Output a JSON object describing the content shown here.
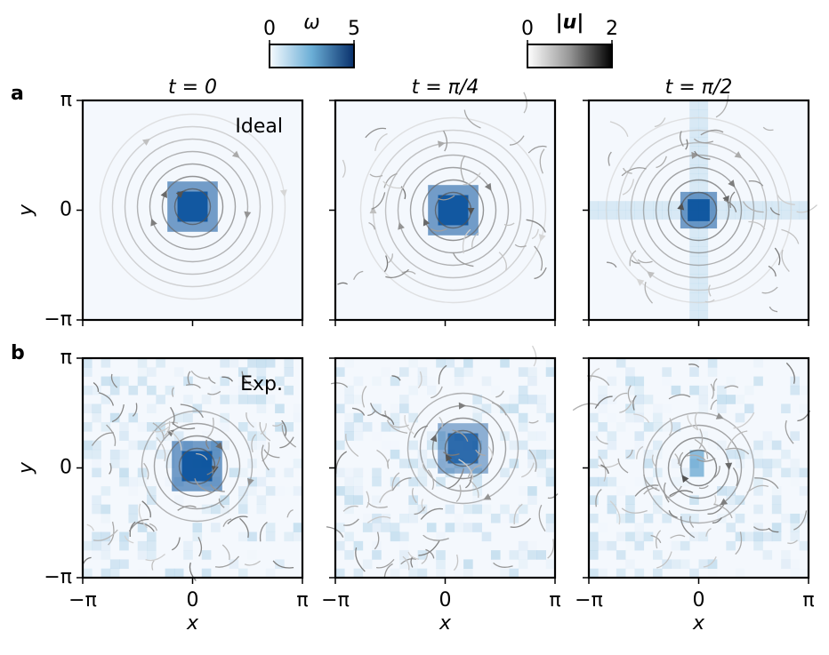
{
  "row_labels": [
    "a",
    "b"
  ],
  "colorbars": [
    {
      "label": "ω",
      "lim": [
        0,
        5
      ],
      "ticks": [
        0,
        5
      ],
      "color": "#08306b"
    },
    {
      "label": "|u|",
      "lim": [
        0,
        2
      ],
      "ticks": [
        0,
        2
      ],
      "color": "#000000"
    }
  ],
  "chart_data": [
    {
      "type": "heatmap",
      "title": "t = 0",
      "annotation": "Ideal",
      "ylabel": "y",
      "xlim": [
        -3.14159,
        3.14159
      ],
      "ylim": [
        -3.14159,
        3.14159
      ],
      "xticks": [
        -3.14159,
        0,
        3.14159
      ],
      "yticks": [
        {
          "value": -3.14159,
          "label": "−π"
        },
        0,
        {
          "value": 3.14159,
          "label": "π"
        }
      ]
    },
    {
      "type": "heatmap",
      "title": "t = π/4",
      "xlim": [
        -3.14159,
        3.14159
      ],
      "ylim": [
        -3.14159,
        3.14159
      ],
      "xticks": [
        -3.14159,
        0,
        3.14159
      ],
      "yticks": [
        -3.14159,
        0,
        3.14159
      ]
    },
    {
      "type": "heatmap",
      "title": "t = π/2",
      "xlim": [
        -3.14159,
        3.14159
      ],
      "ylim": [
        -3.14159,
        3.14159
      ],
      "xticks": [
        -3.14159,
        0,
        3.14159
      ],
      "yticks": [
        -3.14159,
        0,
        3.14159
      ]
    },
    {
      "type": "heatmap",
      "annotation": "Exp.",
      "ylabel": "y",
      "xlabel": "x",
      "xlim": [
        -3.14159,
        3.14159
      ],
      "ylim": [
        -3.14159,
        3.14159
      ],
      "xticks": [
        {
          "value": -3.14159,
          "label": "−π"
        },
        0,
        {
          "value": 3.14159,
          "label": "π"
        }
      ],
      "yticks": [
        {
          "value": -3.14159,
          "label": "−π"
        },
        0,
        {
          "value": 3.14159,
          "label": "π"
        }
      ]
    },
    {
      "type": "heatmap",
      "xlabel": "x",
      "xlim": [
        -3.14159,
        3.14159
      ],
      "ylim": [
        -3.14159,
        3.14159
      ],
      "xticks": [
        {
          "value": -3.14159,
          "label": "−π"
        },
        0,
        {
          "value": 3.14159,
          "label": "π"
        }
      ],
      "yticks": [
        -3.14159,
        0,
        3.14159
      ]
    },
    {
      "type": "heatmap",
      "xlabel": "x",
      "xlim": [
        -3.14159,
        3.14159
      ],
      "ylim": [
        -3.14159,
        3.14159
      ],
      "xticks": [
        {
          "value": -3.14159,
          "label": "−π"
        },
        0,
        {
          "value": 3.14159,
          "label": "π"
        }
      ],
      "yticks": [
        -3.14159,
        0,
        3.14159
      ]
    }
  ]
}
